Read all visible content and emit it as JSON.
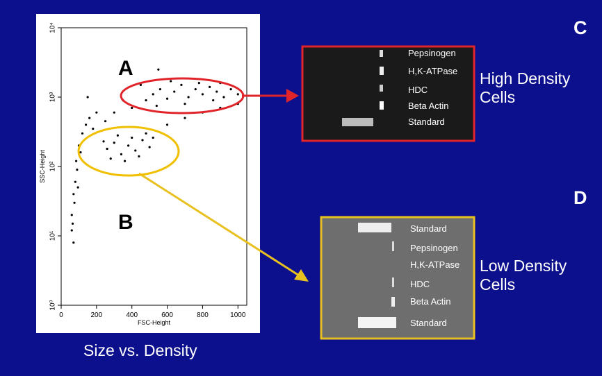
{
  "chart_data": {
    "type": "scatter",
    "xlabel": "FSC-Height",
    "ylabel": "SSC-Height",
    "xlim": [
      0,
      1050
    ],
    "ylim": [
      1,
      10000
    ],
    "log_y": true,
    "xticks": [
      0,
      200,
      400,
      600,
      800,
      1000
    ],
    "yticks": [
      {
        "value": 1,
        "label": "10⁰"
      },
      {
        "value": 10,
        "label": "10¹"
      },
      {
        "value": 100,
        "label": "10²"
      },
      {
        "value": 1000,
        "label": "10³"
      },
      {
        "value": 10000,
        "label": "10⁴"
      }
    ],
    "color": "#000000",
    "gate_labels": [
      "A",
      "B"
    ],
    "x": [
      480,
      520,
      560,
      600,
      640,
      680,
      720,
      760,
      800,
      840,
      880,
      920,
      960,
      1000,
      620,
      700,
      780,
      860,
      540,
      900,
      260,
      300,
      340,
      380,
      420,
      460,
      500,
      320,
      400,
      280,
      360,
      440,
      480,
      240,
      520,
      60,
      70,
      80,
      90,
      65,
      75,
      85,
      100,
      110,
      95,
      120,
      140,
      160,
      200,
      180,
      70,
      60,
      300,
      400,
      350,
      250,
      600,
      700,
      800,
      900,
      150,
      450,
      550,
      1000
    ],
    "y": [
      900,
      1100,
      1300,
      950,
      1200,
      1500,
      1000,
      1300,
      1100,
      1400,
      1200,
      1000,
      1300,
      1100,
      1700,
      800,
      1600,
      900,
      750,
      1600,
      180,
      220,
      150,
      200,
      170,
      240,
      190,
      280,
      260,
      130,
      120,
      140,
      300,
      230,
      260,
      20,
      40,
      60,
      90,
      15,
      30,
      120,
      200,
      160,
      50,
      300,
      400,
      500,
      600,
      350,
      8,
      12,
      600,
      700,
      900,
      450,
      400,
      500,
      600,
      700,
      1000,
      1500,
      2500,
      800
    ]
  },
  "panels": [
    {
      "letter": "C",
      "caption": "High Density Cells",
      "lanes": [
        "Pepsinogen",
        "H,K-ATPase",
        "HDC",
        "Beta Actin",
        "Standard"
      ]
    },
    {
      "letter": "D",
      "caption": "Low Density Cells",
      "lanes": [
        "Standard",
        "Pepsinogen",
        "H,K-ATPase",
        "HDC",
        "Beta Actin",
        "Standard"
      ]
    }
  ],
  "footer": "Size vs. Density"
}
